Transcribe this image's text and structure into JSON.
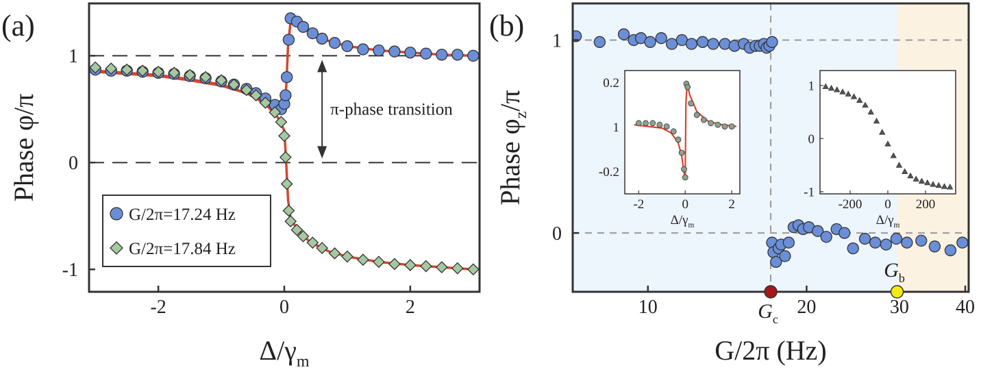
{
  "chart_data": [
    {
      "type": "scatter",
      "panel_label": "(a)",
      "xlabel": {
        "text": "Δ/γ",
        "sub": "m"
      },
      "ylabel": {
        "text": "Phase φ/π"
      },
      "xlim": [
        -3.1,
        3.1
      ],
      "xticks": [
        -2,
        0,
        2
      ],
      "ylim": [
        -1.21,
        1.49
      ],
      "yticks": [
        -1,
        0,
        1
      ],
      "hlines": [
        1,
        0
      ],
      "annotation": {
        "text": "π-phase transition",
        "x": 0.6,
        "y1": 1,
        "y2": 0
      },
      "legend": "lower left",
      "series": [
        {
          "name": "G/2π=17.24 Hz",
          "marker": "circle",
          "color": "#6a8fd8",
          "x": [
            -3.0,
            -2.75,
            -2.5,
            -2.25,
            -2.0,
            -1.75,
            -1.5,
            -1.25,
            -1.0,
            -0.8,
            -0.6,
            -0.45,
            -0.3,
            -0.15,
            -0.05,
            0.0,
            0.02,
            0.04,
            0.07,
            0.1,
            0.2,
            0.3,
            0.45,
            0.6,
            0.8,
            1.0,
            1.25,
            1.5,
            1.75,
            2.0,
            2.25,
            2.5,
            2.75,
            3.0
          ],
          "values": [
            0.87,
            0.86,
            0.86,
            0.85,
            0.84,
            0.83,
            0.81,
            0.79,
            0.76,
            0.73,
            0.69,
            0.65,
            0.6,
            0.54,
            0.5,
            0.55,
            0.63,
            0.8,
            1.15,
            1.35,
            1.32,
            1.27,
            1.21,
            1.16,
            1.12,
            1.09,
            1.06,
            1.05,
            1.04,
            1.03,
            1.02,
            1.01,
            1.01,
            1.0
          ]
        },
        {
          "name": "G/2π=17.84 Hz",
          "marker": "diamond",
          "color": "#a6c8a0",
          "x": [
            -3.0,
            -2.75,
            -2.5,
            -2.25,
            -2.0,
            -1.75,
            -1.5,
            -1.25,
            -1.0,
            -0.8,
            -0.6,
            -0.45,
            -0.3,
            -0.15,
            -0.05,
            0.0,
            0.02,
            0.04,
            0.07,
            0.1,
            0.2,
            0.3,
            0.45,
            0.6,
            0.8,
            1.0,
            1.25,
            1.5,
            1.75,
            2.0,
            2.25,
            2.5,
            2.75,
            3.0
          ],
          "values": [
            0.89,
            0.88,
            0.87,
            0.86,
            0.85,
            0.84,
            0.82,
            0.8,
            0.77,
            0.73,
            0.68,
            0.63,
            0.56,
            0.47,
            0.38,
            0.25,
            0.05,
            -0.2,
            -0.45,
            -0.55,
            -0.63,
            -0.69,
            -0.75,
            -0.8,
            -0.85,
            -0.88,
            -0.91,
            -0.93,
            -0.95,
            -0.96,
            -0.97,
            -0.98,
            -0.99,
            -1.0
          ]
        },
        {
          "line": true,
          "color": "#d6452f",
          "x": [
            -3.0,
            -2.5,
            -2.0,
            -1.5,
            -1.0,
            -0.6,
            -0.3,
            -0.1,
            0.0,
            0.03,
            0.06,
            0.1,
            0.2,
            0.4,
            0.7,
            1.0,
            1.5,
            2.0,
            2.5,
            3.0
          ],
          "values": [
            0.85,
            0.83,
            0.81,
            0.77,
            0.72,
            0.65,
            0.57,
            0.5,
            0.52,
            0.7,
            1.1,
            1.32,
            1.3,
            1.22,
            1.14,
            1.09,
            1.05,
            1.03,
            1.01,
            1.0
          ]
        },
        {
          "line": true,
          "color": "#d6452f",
          "x": [
            -3.0,
            -2.5,
            -2.0,
            -1.5,
            -1.0,
            -0.6,
            -0.3,
            -0.1,
            0.0,
            0.03,
            0.06,
            0.1,
            0.2,
            0.4,
            0.7,
            1.0,
            1.5,
            2.0,
            2.5,
            3.0
          ],
          "values": [
            0.86,
            0.84,
            0.82,
            0.78,
            0.73,
            0.65,
            0.55,
            0.42,
            0.3,
            0.0,
            -0.35,
            -0.52,
            -0.62,
            -0.74,
            -0.83,
            -0.88,
            -0.93,
            -0.96,
            -0.98,
            -1.0
          ]
        }
      ]
    },
    {
      "type": "scatter",
      "panel_label": "(b)",
      "xlabel": {
        "text": "G/2π (Hz)"
      },
      "ylabel": {
        "text": "Phase φ",
        "sub": "z",
        "tail": "/π"
      },
      "xlim": [
        7.2,
        40.6
      ],
      "xlog": true,
      "xticks": [
        10,
        20,
        30,
        40
      ],
      "ylim": [
        -0.305,
        1.19
      ],
      "yticks": [
        0,
        1
      ],
      "hlines": [
        1,
        0
      ],
      "vlines": [
        17.1
      ],
      "regions": [
        {
          "xlim": [
            7.2,
            29.7
          ],
          "color": "#edf5fd"
        },
        {
          "xlim": [
            29.7,
            40.6
          ],
          "color": "#fcf2e2"
        }
      ],
      "markers": [
        {
          "x": 17.1,
          "label": "G",
          "sub": "c",
          "color": "#a51818",
          "side": "below"
        },
        {
          "x": 29.7,
          "label": "G",
          "sub": "b",
          "color": "#f6ea10",
          "side": "above"
        }
      ],
      "series": [
        {
          "marker": "circle",
          "color": "#6a8fd8",
          "x": [
            7.3,
            8.1,
            9.0,
            9.4,
            9.7,
            10.1,
            10.6,
            11.1,
            11.6,
            12.1,
            12.7,
            13.3,
            14.0,
            14.6,
            15.2,
            15.6,
            16.0,
            16.3,
            16.6,
            16.8,
            17.0,
            17.2,
            17.2,
            17.3,
            17.5,
            17.7,
            17.9,
            18.2,
            18.5,
            18.9,
            19.3,
            19.7,
            20.2,
            21.0,
            21.8,
            22.8,
            23.6,
            24.5,
            25.8,
            27.0,
            28.3,
            29.6,
            31.0,
            33.0,
            35.0,
            37.5,
            39.5
          ],
          "values": [
            1.02,
            0.99,
            1.03,
            1.0,
            1.01,
            0.99,
            1.01,
            0.98,
            1.0,
            0.98,
            0.99,
            0.98,
            0.98,
            0.97,
            0.98,
            0.96,
            0.97,
            0.97,
            0.98,
            0.96,
            0.97,
            0.99,
            -0.05,
            -0.1,
            -0.15,
            -0.08,
            -0.06,
            -0.12,
            -0.05,
            0.03,
            0.04,
            0.02,
            0.03,
            0.01,
            -0.02,
            0.02,
            0.0,
            -0.08,
            -0.03,
            -0.05,
            -0.06,
            -0.03,
            -0.05,
            -0.04,
            -0.07,
            -0.09,
            -0.05
          ]
        }
      ]
    },
    {
      "type": "scatter",
      "inset": true,
      "xlabel": {
        "text": "Δ/γ",
        "sub": "m"
      },
      "xlim": [
        -2.6,
        2.35
      ],
      "xticks": [
        -2,
        0,
        2
      ],
      "ylim": [
        -0.45,
        0.3
      ],
      "ytick_labels": [
        "0.2",
        "1",
        "-0.2"
      ],
      "series": [
        {
          "marker": "circle",
          "color": "#8fa08f",
          "x": [
            -2.0,
            -1.7,
            -1.4,
            -1.1,
            -0.8,
            -0.5,
            -0.3,
            -0.15,
            -0.05,
            0.0,
            0.05,
            0.1,
            0.25,
            0.5,
            0.8,
            1.1,
            1.4,
            1.7,
            2.0
          ],
          "values": [
            -0.02,
            -0.02,
            -0.02,
            -0.03,
            -0.04,
            -0.07,
            -0.12,
            -0.2,
            -0.3,
            -0.35,
            0.22,
            0.2,
            0.1,
            0.03,
            0.0,
            -0.02,
            -0.03,
            -0.04,
            -0.04
          ]
        },
        {
          "line": true,
          "color": "#d6452f",
          "x": [
            -2.2,
            -1.6,
            -1.0,
            -0.6,
            -0.3,
            -0.15,
            -0.05,
            0.0,
            0.03,
            0.08,
            0.2,
            0.5,
            1.0,
            1.6,
            2.2
          ],
          "values": [
            -0.03,
            -0.04,
            -0.05,
            -0.08,
            -0.14,
            -0.22,
            -0.32,
            -0.36,
            0.1,
            0.22,
            0.15,
            0.05,
            -0.01,
            -0.03,
            -0.04
          ]
        }
      ]
    },
    {
      "type": "scatter",
      "inset": true,
      "xlabel": {
        "text": "Δ/γ",
        "sub": "m"
      },
      "xlim": [
        -360,
        360
      ],
      "xticks": [
        -200,
        0,
        200
      ],
      "ylim": [
        -1.04,
        1.28
      ],
      "yticks": [
        -1,
        0,
        1
      ],
      "series": [
        {
          "marker": "triangle",
          "color": "#555555",
          "x": [
            -330,
            -300,
            -270,
            -240,
            -210,
            -180,
            -150,
            -120,
            -90,
            -60,
            -30,
            0,
            30,
            60,
            90,
            120,
            150,
            180,
            210,
            240,
            270,
            300,
            330
          ],
          "values": [
            0.98,
            0.95,
            0.92,
            0.88,
            0.84,
            0.79,
            0.72,
            0.63,
            0.5,
            0.33,
            0.12,
            -0.1,
            -0.32,
            -0.5,
            -0.62,
            -0.7,
            -0.76,
            -0.8,
            -0.83,
            -0.86,
            -0.88,
            -0.9,
            -0.91
          ]
        }
      ]
    }
  ]
}
